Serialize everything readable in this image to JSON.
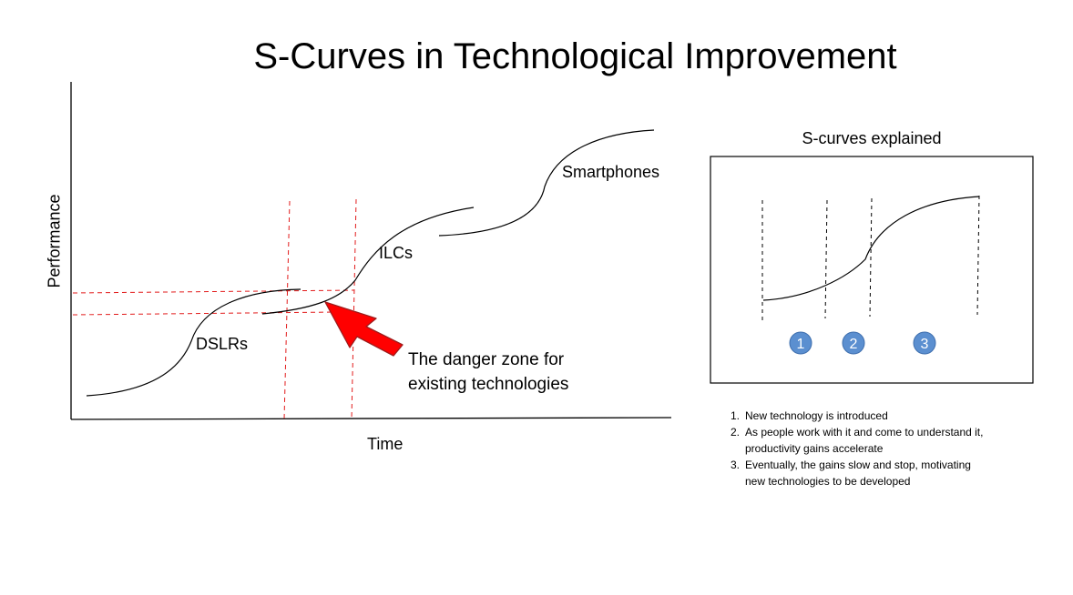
{
  "title": "S-Curves in Technological Improvement",
  "main_chart": {
    "ylabel": "Performance",
    "xlabel": "Time",
    "curve_labels": {
      "dslr": "DSLRs",
      "ilc": "ILCs",
      "smartphone": "Smartphones"
    },
    "danger_line1": "The danger zone for",
    "danger_line2": "existing technologies",
    "arrow_color": "#ff0000",
    "guide_color": "#e21b1b"
  },
  "explainer": {
    "title": "S-curves explained",
    "phase_labels": [
      "1",
      "2",
      "3"
    ],
    "phase_color": "#5b8fd0"
  },
  "notes": [
    {
      "num": "1.",
      "line1": "New technology is introduced",
      "line2": ""
    },
    {
      "num": "2.",
      "line1": "As people work with it and come to understand it,",
      "line2": "productivity gains accelerate"
    },
    {
      "num": "3.",
      "line1": "Eventually, the gains slow and stop, motivating",
      "line2": "new technologies to be developed"
    }
  ]
}
